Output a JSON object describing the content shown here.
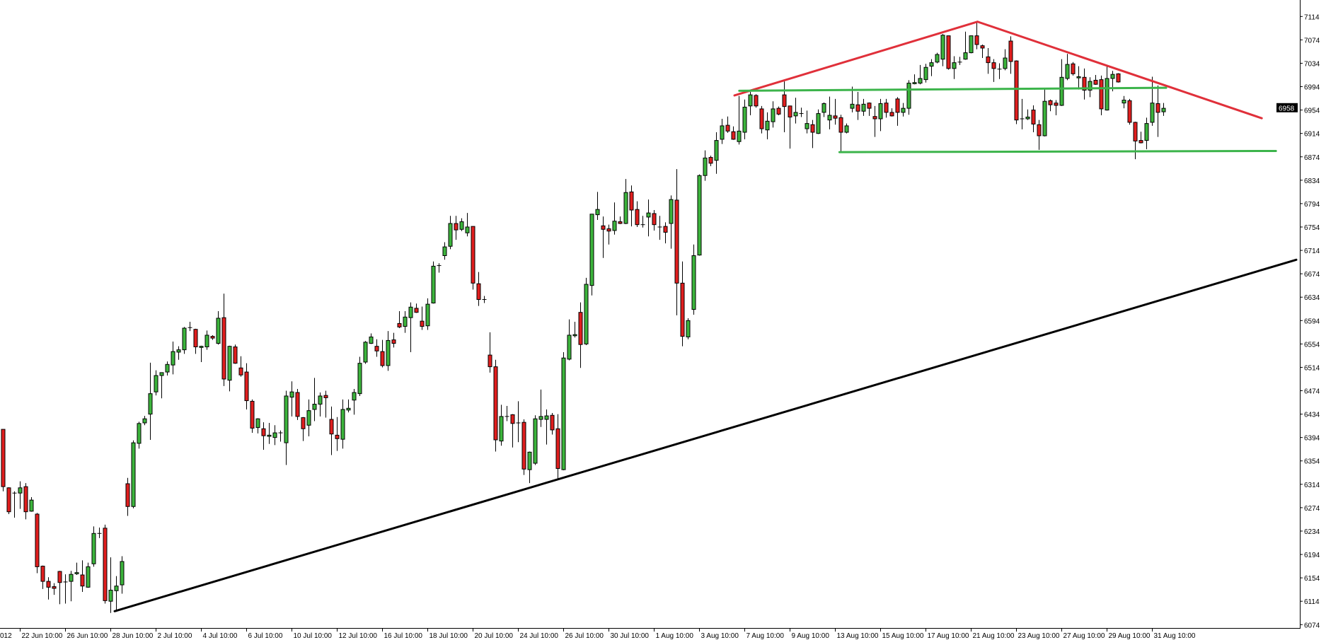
{
  "chart_data": {
    "type": "candlestick",
    "title": "",
    "xlabel": "",
    "ylabel": "",
    "ylim": [
      6074,
      7114
    ],
    "grid": false,
    "colors": {
      "up": "#3cb43c",
      "down": "#e01e1e",
      "outline": "#000000",
      "background": "#ffffff"
    },
    "current_price": "6958",
    "y_ticks": [
      "7114",
      "7074",
      "7034",
      "6994",
      "6954",
      "6914",
      "6874",
      "6834",
      "6794",
      "6754",
      "6714",
      "6674",
      "6634",
      "6594",
      "6554",
      "6514",
      "6474",
      "6434",
      "6394",
      "6354",
      "6314",
      "6274",
      "6234",
      "6194",
      "6154",
      "6114",
      "6074"
    ],
    "x_label_partial": "012",
    "x_labels": [
      {
        "text": "22 Jun 10:00",
        "bar": 3
      },
      {
        "text": "26 Jun 10:00",
        "bar": 11
      },
      {
        "text": "28 Jun 10:00",
        "bar": 19
      },
      {
        "text": "2 Jul 10:00",
        "bar": 27
      },
      {
        "text": "4 Jul 10:00",
        "bar": 35
      },
      {
        "text": "6 Jul 10:00",
        "bar": 43
      },
      {
        "text": "10 Jul 10:00",
        "bar": 51
      },
      {
        "text": "12 Jul 10:00",
        "bar": 59
      },
      {
        "text": "16 Jul 10:00",
        "bar": 67
      },
      {
        "text": "18 Jul 10:00",
        "bar": 75
      },
      {
        "text": "20 Jul 10:00",
        "bar": 83
      },
      {
        "text": "24 Jul 10:00",
        "bar": 91
      },
      {
        "text": "26 Jul 10:00",
        "bar": 99
      },
      {
        "text": "30 Jul 10:00",
        "bar": 107
      },
      {
        "text": "1 Aug 10:00",
        "bar": 115
      },
      {
        "text": "3 Aug 10:00",
        "bar": 123
      },
      {
        "text": "7 Aug 10:00",
        "bar": 131
      },
      {
        "text": "9 Aug 10:00",
        "bar": 139
      },
      {
        "text": "13 Aug 10:00",
        "bar": 147
      },
      {
        "text": "15 Aug 10:00",
        "bar": 155
      },
      {
        "text": "17 Aug 10:00",
        "bar": 163
      },
      {
        "text": "21 Aug 10:00",
        "bar": 171
      },
      {
        "text": "23 Aug 10:00",
        "bar": 179
      },
      {
        "text": "27 Aug 10:00",
        "bar": 187
      },
      {
        "text": "29 Aug 10:00",
        "bar": 195
      },
      {
        "text": "31 Aug 10:00",
        "bar": 203
      }
    ],
    "candles_ohlc": [
      [
        6408,
        6408,
        6302,
        6310
      ],
      [
        6308,
        6309,
        6263,
        6267
      ],
      [
        6299,
        6302,
        6257,
        6299
      ],
      [
        6299,
        6319,
        6272,
        6308
      ],
      [
        6310,
        6316,
        6254,
        6267
      ],
      [
        6268,
        6292,
        6267,
        6287
      ],
      [
        6263,
        6265,
        6162,
        6173
      ],
      [
        6174,
        6175,
        6135,
        6148
      ],
      [
        6148,
        6155,
        6117,
        6138
      ],
      [
        6139,
        6145,
        6125,
        6136
      ],
      [
        6165,
        6166,
        6109,
        6146
      ],
      [
        6146,
        6160,
        6110,
        6147
      ],
      [
        6148,
        6166,
        6114,
        6160
      ],
      [
        6161,
        6180,
        6159,
        6163
      ],
      [
        6159,
        6184,
        6130,
        6140
      ],
      [
        6138,
        6180,
        6137,
        6173
      ],
      [
        6178,
        6242,
        6173,
        6230
      ],
      [
        6229,
        6240,
        6222,
        6230
      ],
      [
        6239,
        6245,
        6110,
        6115
      ],
      [
        6114,
        6189,
        6094,
        6133
      ],
      [
        6132,
        6157,
        6096,
        6140
      ],
      [
        6142,
        6191,
        6127,
        6182
      ],
      [
        6315,
        6325,
        6260,
        6276
      ],
      [
        6276,
        6389,
        6273,
        6385
      ],
      [
        6384,
        6421,
        6375,
        6418
      ],
      [
        6419,
        6431,
        6415,
        6426
      ],
      [
        6434,
        6522,
        6390,
        6469
      ],
      [
        6472,
        6509,
        6466,
        6500
      ],
      [
        6500,
        6505,
        6461,
        6505
      ],
      [
        6506,
        6524,
        6500,
        6519
      ],
      [
        6518,
        6558,
        6502,
        6541
      ],
      [
        6540,
        6550,
        6527,
        6544
      ],
      [
        6544,
        6583,
        6537,
        6581
      ],
      [
        6582,
        6592,
        6576,
        6582
      ],
      [
        6579,
        6580,
        6537,
        6549
      ],
      [
        6548,
        6551,
        6523,
        6550
      ],
      [
        6549,
        6577,
        6544,
        6569
      ],
      [
        6567,
        6569,
        6561,
        6564
      ],
      [
        6555,
        6610,
        6553,
        6598
      ],
      [
        6599,
        6640,
        6482,
        6494
      ],
      [
        6492,
        6551,
        6473,
        6550
      ],
      [
        6549,
        6553,
        6520,
        6521
      ],
      [
        6513,
        6533,
        6498,
        6501
      ],
      [
        6506,
        6521,
        6442,
        6457
      ],
      [
        6456,
        6459,
        6402,
        6410
      ],
      [
        6411,
        6427,
        6401,
        6426
      ],
      [
        6409,
        6420,
        6373,
        6397
      ],
      [
        6396,
        6419,
        6383,
        6398
      ],
      [
        6394,
        6415,
        6381,
        6402
      ],
      [
        6402,
        6406,
        6387,
        6402
      ],
      [
        6385,
        6474,
        6347,
        6465
      ],
      [
        6463,
        6490,
        6430,
        6472
      ],
      [
        6471,
        6477,
        6424,
        6430
      ],
      [
        6428,
        6429,
        6388,
        6409
      ],
      [
        6415,
        6459,
        6396,
        6440
      ],
      [
        6442,
        6496,
        6422,
        6451
      ],
      [
        6451,
        6471,
        6430,
        6465
      ],
      [
        6466,
        6474,
        6428,
        6462
      ],
      [
        6425,
        6447,
        6364,
        6400
      ],
      [
        6398,
        6429,
        6371,
        6392
      ],
      [
        6391,
        6459,
        6375,
        6442
      ],
      [
        6441,
        6459,
        6437,
        6444
      ],
      [
        6458,
        6477,
        6433,
        6471
      ],
      [
        6469,
        6532,
        6465,
        6521
      ],
      [
        6523,
        6559,
        6520,
        6557
      ],
      [
        6555,
        6572,
        6554,
        6566
      ],
      [
        6550,
        6562,
        6532,
        6542
      ],
      [
        6541,
        6561,
        6514,
        6517
      ],
      [
        6517,
        6576,
        6508,
        6560
      ],
      [
        6561,
        6573,
        6548,
        6555
      ],
      [
        6589,
        6610,
        6581,
        6583
      ],
      [
        6584,
        6610,
        6573,
        6600
      ],
      [
        6599,
        6625,
        6540,
        6617
      ],
      [
        6615,
        6623,
        6607,
        6608
      ],
      [
        6593,
        6618,
        6578,
        6584
      ],
      [
        6585,
        6632,
        6578,
        6622
      ],
      [
        6624,
        6695,
        6623,
        6687
      ],
      [
        6688,
        6692,
        6676,
        6688
      ],
      [
        6705,
        6728,
        6698,
        6720
      ],
      [
        6721,
        6773,
        6716,
        6760
      ],
      [
        6760,
        6773,
        6732,
        6749
      ],
      [
        6750,
        6769,
        6747,
        6763
      ],
      [
        6744,
        6778,
        6738,
        6754
      ],
      [
        6755,
        6755,
        6647,
        6658
      ],
      [
        6657,
        6677,
        6619,
        6630
      ],
      [
        6630,
        6636,
        6624,
        6630
      ],
      [
        6535,
        6574,
        6505,
        6515
      ],
      [
        6515,
        6527,
        6370,
        6390
      ],
      [
        6388,
        6450,
        6380,
        6430
      ],
      [
        6430,
        6448,
        6422,
        6430
      ],
      [
        6433,
        6434,
        6377,
        6418
      ],
      [
        6419,
        6456,
        6386,
        6419
      ],
      [
        6420,
        6425,
        6330,
        6340
      ],
      [
        6339,
        6370,
        6316,
        6369
      ],
      [
        6350,
        6432,
        6347,
        6426
      ],
      [
        6425,
        6476,
        6412,
        6430
      ],
      [
        6425,
        6442,
        6382,
        6431
      ],
      [
        6432,
        6436,
        6399,
        6407
      ],
      [
        6409,
        6434,
        6324,
        6341
      ],
      [
        6339,
        6540,
        6338,
        6530
      ],
      [
        6528,
        6596,
        6526,
        6569
      ],
      [
        6568,
        6592,
        6565,
        6570
      ],
      [
        6608,
        6625,
        6513,
        6553
      ],
      [
        6554,
        6667,
        6552,
        6656
      ],
      [
        6654,
        6776,
        6637,
        6776
      ],
      [
        6775,
        6814,
        6766,
        6784
      ],
      [
        6756,
        6772,
        6701,
        6750
      ],
      [
        6751,
        6758,
        6724,
        6747
      ],
      [
        6748,
        6796,
        6741,
        6764
      ],
      [
        6763,
        6772,
        6759,
        6760
      ],
      [
        6760,
        6836,
        6759,
        6813
      ],
      [
        6814,
        6825,
        6755,
        6783
      ],
      [
        6784,
        6798,
        6754,
        6758
      ],
      [
        6758,
        6773,
        6753,
        6758
      ],
      [
        6771,
        6801,
        6738,
        6778
      ],
      [
        6777,
        6783,
        6748,
        6758
      ],
      [
        6754,
        6773,
        6732,
        6754
      ],
      [
        6755,
        6762,
        6726,
        6745
      ],
      [
        6760,
        6808,
        6717,
        6801
      ],
      [
        6800,
        6853,
        6603,
        6658
      ],
      [
        6658,
        6695,
        6550,
        6567
      ],
      [
        6566,
        6598,
        6562,
        6594
      ],
      [
        6613,
        6724,
        6604,
        6705
      ],
      [
        6706,
        6844,
        6705,
        6842
      ],
      [
        6842,
        6885,
        6833,
        6872
      ],
      [
        6873,
        6876,
        6858,
        6863
      ],
      [
        6868,
        6916,
        6845,
        6902
      ],
      [
        6904,
        6939,
        6896,
        6927
      ],
      [
        6928,
        6943,
        6915,
        6918
      ],
      [
        6917,
        6926,
        6903,
        6904
      ],
      [
        6900,
        6978,
        6895,
        6918
      ],
      [
        6916,
        6972,
        6904,
        6959
      ],
      [
        6961,
        6985,
        6945,
        6980
      ],
      [
        6979,
        6981,
        6958,
        6961
      ],
      [
        6956,
        6961,
        6914,
        6922
      ],
      [
        6920,
        6950,
        6904,
        6935
      ],
      [
        6934,
        6969,
        6924,
        6956
      ],
      [
        6957,
        6960,
        6945,
        6947
      ],
      [
        6980,
        7003,
        6916,
        6960
      ],
      [
        6961,
        6961,
        6888,
        6942
      ],
      [
        6944,
        6975,
        6931,
        6950
      ],
      [
        6948,
        6958,
        6942,
        6948
      ],
      [
        6922,
        6953,
        6914,
        6931
      ],
      [
        6929,
        6937,
        6889,
        6916
      ],
      [
        6914,
        6955,
        6913,
        6948
      ],
      [
        6950,
        6967,
        6942,
        6965
      ],
      [
        6937,
        6977,
        6921,
        6945
      ],
      [
        6944,
        6973,
        6929,
        6940
      ],
      [
        6941,
        6946,
        6883,
        6916
      ],
      [
        6916,
        6931,
        6914,
        6927
      ],
      [
        6957,
        6994,
        6950,
        6964
      ],
      [
        6963,
        6985,
        6937,
        6952
      ],
      [
        6952,
        6973,
        6944,
        6964
      ],
      [
        6966,
        6967,
        6944,
        6957
      ],
      [
        6943,
        6961,
        6908,
        6939
      ],
      [
        6939,
        6973,
        6918,
        6965
      ],
      [
        6966,
        6973,
        6941,
        6950
      ],
      [
        6950,
        6957,
        6943,
        6944
      ],
      [
        6973,
        6976,
        6927,
        6950
      ],
      [
        6950,
        6966,
        6943,
        6957
      ],
      [
        6957,
        7005,
        6946,
        7000
      ],
      [
        6999,
        7015,
        6998,
        7001
      ],
      [
        7000,
        7031,
        6998,
        7008
      ],
      [
        7006,
        7033,
        7001,
        7027
      ],
      [
        7029,
        7041,
        7012,
        7035
      ],
      [
        7036,
        7052,
        7034,
        7049
      ],
      [
        7041,
        7084,
        7029,
        7082
      ],
      [
        7081,
        7081,
        7023,
        7025
      ],
      [
        7025,
        7046,
        7007,
        7035
      ],
      [
        7036,
        7045,
        7031,
        7036
      ],
      [
        7041,
        7088,
        7040,
        7052
      ],
      [
        7052,
        7081,
        7051,
        7081
      ],
      [
        7081,
        7104,
        7058,
        7066
      ],
      [
        7064,
        7066,
        7043,
        7060
      ],
      [
        7045,
        7060,
        7016,
        7035
      ],
      [
        7035,
        7041,
        7002,
        7025
      ],
      [
        7024,
        7034,
        7007,
        7024
      ],
      [
        7025,
        7058,
        7022,
        7043
      ],
      [
        7072,
        7080,
        7016,
        7037
      ],
      [
        7038,
        7039,
        6930,
        6937
      ],
      [
        6939,
        6973,
        6921,
        6939
      ],
      [
        6939,
        6955,
        6937,
        6942
      ],
      [
        6954,
        6962,
        6916,
        6930
      ],
      [
        6929,
        6937,
        6886,
        6910
      ],
      [
        6910,
        6990,
        6909,
        6969
      ],
      [
        6970,
        6972,
        6952,
        6963
      ],
      [
        6966,
        6971,
        6945,
        6962
      ],
      [
        6962,
        7041,
        6961,
        7010
      ],
      [
        7008,
        7050,
        7005,
        7032
      ],
      [
        7033,
        7036,
        7013,
        7016
      ],
      [
        7009,
        7029,
        6989,
        7011
      ],
      [
        7010,
        7025,
        6972,
        6988
      ],
      [
        6988,
        7010,
        6976,
        7003
      ],
      [
        7005,
        7014,
        6997,
        6998
      ],
      [
        7006,
        7013,
        6945,
        6956
      ],
      [
        6954,
        7029,
        6953,
        7008
      ],
      [
        7008,
        7021,
        6986,
        7015
      ],
      [
        7016,
        7017,
        7001,
        7002
      ],
      [
        6966,
        6978,
        6957,
        6971
      ],
      [
        6970,
        6973,
        6929,
        6933
      ],
      [
        6933,
        6934,
        6870,
        6901
      ],
      [
        6902,
        6917,
        6897,
        6898
      ],
      [
        6902,
        6941,
        6887,
        6931
      ],
      [
        6933,
        7011,
        6927,
        6966
      ],
      [
        6965,
        6996,
        6908,
        6950
      ],
      [
        6951,
        6966,
        6944,
        6957
      ]
    ],
    "trendlines": [
      {
        "name": "support-trendline",
        "color": "#000000",
        "points": [
          [
            19.75,
            6097
          ],
          [
            228.5,
            6698
          ]
        ]
      },
      {
        "name": "resistance-rising",
        "color": "#e0303a",
        "points": [
          [
            129.25,
            6979
          ],
          [
            172.2,
            7105
          ]
        ]
      },
      {
        "name": "resistance-falling",
        "color": "#e0303a",
        "points": [
          [
            172.2,
            7105
          ],
          [
            222.4,
            6940
          ]
        ]
      },
      {
        "name": "range-top",
        "color": "#3cb44b",
        "points": [
          [
            130.1,
            6987
          ],
          [
            205.5,
            6992
          ]
        ]
      },
      {
        "name": "range-bottom",
        "color": "#3cb44b",
        "points": [
          [
            147.8,
            6882
          ],
          [
            224.9,
            6884
          ]
        ]
      }
    ]
  }
}
